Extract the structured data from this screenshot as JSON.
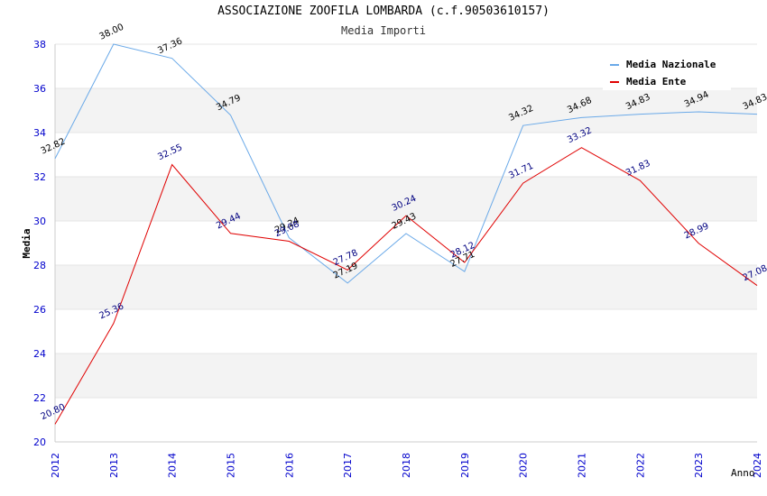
{
  "chart_data": {
    "type": "line",
    "title": "ASSOCIAZIONE ZOOFILA LOMBARDA (c.f.90503610157)",
    "subtitle": "Media Importi",
    "xlabel": "Anno",
    "ylabel": "Media",
    "categories": [
      "2012",
      "2013",
      "2014",
      "2015",
      "2016",
      "2017",
      "2018",
      "2019",
      "2020",
      "2021",
      "2022",
      "2023",
      "2024"
    ],
    "ylim": [
      20,
      38
    ],
    "yticks": [
      20,
      22,
      24,
      26,
      28,
      30,
      32,
      34,
      36,
      38
    ],
    "series": [
      {
        "name": "Media Nazionale",
        "color": "#6aa9e8",
        "label_color": "#000000",
        "values": [
          32.82,
          38.0,
          37.36,
          34.79,
          29.24,
          27.19,
          29.43,
          27.71,
          34.32,
          34.68,
          34.83,
          34.94,
          34.83
        ],
        "labels": [
          "32.82",
          "38.00",
          "37.36",
          "34.79",
          "29.24",
          "27.19",
          "29.43",
          "27.71",
          "34.32",
          "34.68",
          "34.83",
          "34.94",
          "34.83"
        ]
      },
      {
        "name": "Media Ente",
        "color": "#e00000",
        "label_color": "#000080",
        "values": [
          20.8,
          25.36,
          32.55,
          29.44,
          29.08,
          27.78,
          30.24,
          28.12,
          31.71,
          33.32,
          31.83,
          28.99,
          27.08
        ],
        "labels": [
          "20.80",
          "25.36",
          "32.55",
          "29.44",
          "29.08",
          "27.78",
          "30.24",
          "28.12",
          "31.71",
          "33.32",
          "31.83",
          "28.99",
          "27.08"
        ]
      }
    ],
    "legend_position": "top-right",
    "band_colors": [
      "#f3f3f3",
      "#ffffff"
    ],
    "axis_tick_color": "#0000cc"
  }
}
